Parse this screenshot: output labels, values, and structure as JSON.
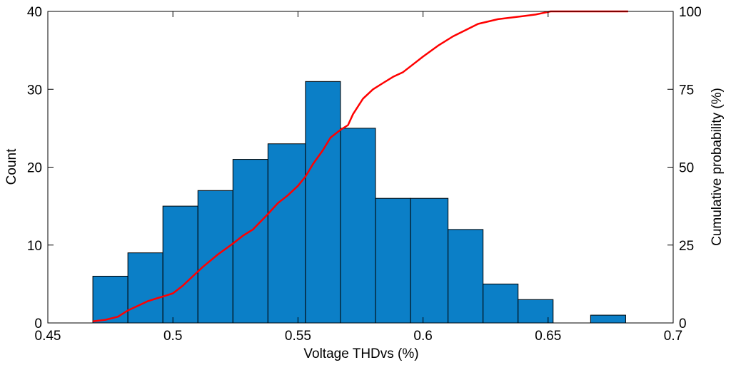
{
  "chart_data": {
    "type": "bar",
    "xlabel": "Voltage THDvs (%)",
    "ylabel": "Count",
    "y2label": "Cumulative probability (%)",
    "xlim": [
      0.45,
      0.7
    ],
    "ylim": [
      0,
      40
    ],
    "y2lim": [
      0,
      100
    ],
    "x_ticks": [
      "0.45",
      "0.5",
      "0.55",
      "0.6",
      "0.65",
      "0.7"
    ],
    "y_ticks": [
      "0",
      "10",
      "20",
      "30",
      "40"
    ],
    "y2_ticks": [
      "0",
      "25",
      "50",
      "75",
      "100"
    ],
    "grid": false,
    "bar_color": "#0b7fc7",
    "line_color": "#ff0000",
    "histogram": {
      "bin_edges": [
        0.468,
        0.482,
        0.496,
        0.51,
        0.524,
        0.538,
        0.553,
        0.567,
        0.581,
        0.595,
        0.61,
        0.624,
        0.638,
        0.652,
        0.667,
        0.681
      ],
      "counts": [
        6,
        9,
        15,
        17,
        21,
        23,
        31,
        25,
        16,
        16,
        12,
        5,
        3,
        0,
        1
      ]
    },
    "cumulative": {
      "x": [
        0.468,
        0.473,
        0.478,
        0.482,
        0.486,
        0.49,
        0.494,
        0.496,
        0.5,
        0.504,
        0.508,
        0.512,
        0.518,
        0.524,
        0.528,
        0.532,
        0.538,
        0.542,
        0.546,
        0.55,
        0.553,
        0.556,
        0.56,
        0.563,
        0.567,
        0.57,
        0.572,
        0.576,
        0.58,
        0.584,
        0.588,
        0.592,
        0.596,
        0.6,
        0.606,
        0.612,
        0.617,
        0.622,
        0.63,
        0.64,
        0.645,
        0.648,
        0.651,
        0.655,
        0.665,
        0.682
      ],
      "y": [
        0.5,
        1.0,
        2.0,
        4.0,
        5.5,
        7.0,
        8.0,
        8.5,
        9.5,
        12.0,
        15.0,
        18.0,
        22.0,
        25.5,
        28.0,
        30.0,
        35.0,
        38.5,
        41.0,
        44.0,
        47.0,
        51.0,
        55.5,
        59.5,
        62.0,
        63.5,
        67.0,
        72.0,
        75.0,
        77.0,
        79.0,
        80.5,
        83.0,
        85.5,
        89.0,
        92.0,
        94.0,
        96.0,
        97.5,
        98.5,
        99.0,
        99.5,
        100.0,
        100.0,
        100.0,
        100.0
      ]
    }
  }
}
